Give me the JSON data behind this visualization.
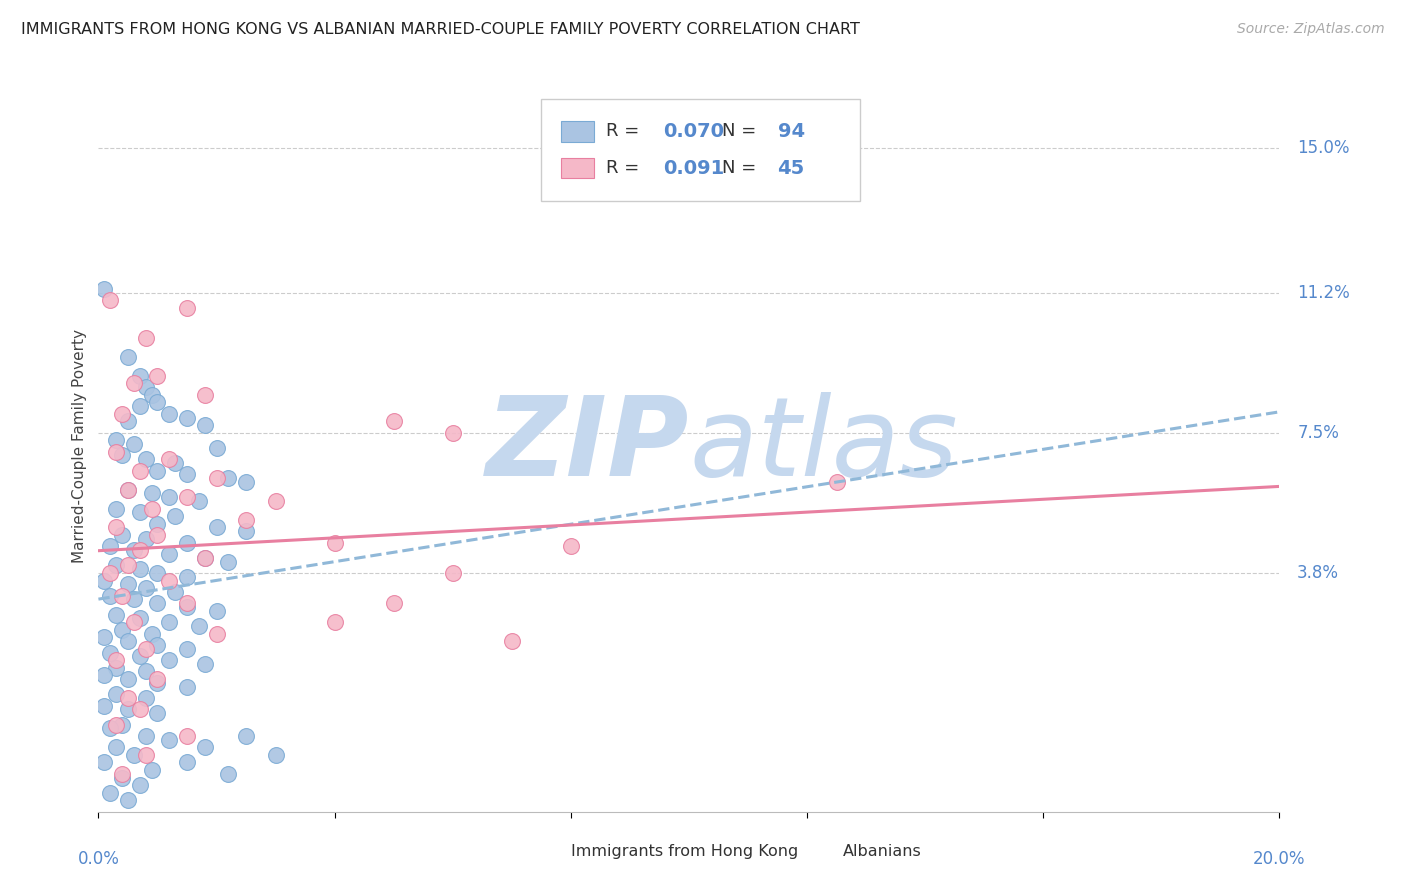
{
  "title": "IMMIGRANTS FROM HONG KONG VS ALBANIAN MARRIED-COUPLE FAMILY POVERTY CORRELATION CHART",
  "source": "Source: ZipAtlas.com",
  "ylabel": "Married-Couple Family Poverty",
  "y_ticks": [
    0.038,
    0.075,
    0.112,
    0.15
  ],
  "y_tick_labels": [
    "3.8%",
    "7.5%",
    "11.2%",
    "15.0%"
  ],
  "x_ticks": [
    0.0,
    0.04,
    0.08,
    0.12,
    0.16,
    0.2
  ],
  "x_range": [
    0.0,
    0.2
  ],
  "y_range": [
    -0.025,
    0.168
  ],
  "legend": {
    "hk_r": "0.070",
    "hk_n": "94",
    "alb_r": "0.091",
    "alb_n": "45"
  },
  "hk_color": "#aac4e2",
  "alb_color": "#f5b8c8",
  "hk_edge_color": "#7aaad4",
  "alb_edge_color": "#e87fa0",
  "hk_line_color": "#90b8d8",
  "alb_line_color": "#e87fa0",
  "title_color": "#222222",
  "axis_color": "#5588cc",
  "watermark_zip_color": "#c5d8ee",
  "watermark_atlas_color": "#c5d8ee",
  "background_color": "#ffffff",
  "grid_color": "#cccccc",
  "hk_scatter": [
    [
      0.001,
      0.113
    ],
    [
      0.005,
      0.095
    ],
    [
      0.007,
      0.09
    ],
    [
      0.008,
      0.087
    ],
    [
      0.009,
      0.085
    ],
    [
      0.01,
      0.083
    ],
    [
      0.007,
      0.082
    ],
    [
      0.012,
      0.08
    ],
    [
      0.015,
      0.079
    ],
    [
      0.005,
      0.078
    ],
    [
      0.018,
      0.077
    ],
    [
      0.003,
      0.073
    ],
    [
      0.006,
      0.072
    ],
    [
      0.02,
      0.071
    ],
    [
      0.004,
      0.069
    ],
    [
      0.008,
      0.068
    ],
    [
      0.013,
      0.067
    ],
    [
      0.01,
      0.065
    ],
    [
      0.015,
      0.064
    ],
    [
      0.022,
      0.063
    ],
    [
      0.025,
      0.062
    ],
    [
      0.005,
      0.06
    ],
    [
      0.009,
      0.059
    ],
    [
      0.012,
      0.058
    ],
    [
      0.017,
      0.057
    ],
    [
      0.003,
      0.055
    ],
    [
      0.007,
      0.054
    ],
    [
      0.013,
      0.053
    ],
    [
      0.01,
      0.051
    ],
    [
      0.02,
      0.05
    ],
    [
      0.025,
      0.049
    ],
    [
      0.004,
      0.048
    ],
    [
      0.008,
      0.047
    ],
    [
      0.015,
      0.046
    ],
    [
      0.002,
      0.045
    ],
    [
      0.006,
      0.044
    ],
    [
      0.012,
      0.043
    ],
    [
      0.018,
      0.042
    ],
    [
      0.022,
      0.041
    ],
    [
      0.003,
      0.04
    ],
    [
      0.007,
      0.039
    ],
    [
      0.01,
      0.038
    ],
    [
      0.015,
      0.037
    ],
    [
      0.001,
      0.036
    ],
    [
      0.005,
      0.035
    ],
    [
      0.008,
      0.034
    ],
    [
      0.013,
      0.033
    ],
    [
      0.002,
      0.032
    ],
    [
      0.006,
      0.031
    ],
    [
      0.01,
      0.03
    ],
    [
      0.015,
      0.029
    ],
    [
      0.02,
      0.028
    ],
    [
      0.003,
      0.027
    ],
    [
      0.007,
      0.026
    ],
    [
      0.012,
      0.025
    ],
    [
      0.017,
      0.024
    ],
    [
      0.004,
      0.023
    ],
    [
      0.009,
      0.022
    ],
    [
      0.001,
      0.021
    ],
    [
      0.005,
      0.02
    ],
    [
      0.01,
      0.019
    ],
    [
      0.015,
      0.018
    ],
    [
      0.002,
      0.017
    ],
    [
      0.007,
      0.016
    ],
    [
      0.012,
      0.015
    ],
    [
      0.018,
      0.014
    ],
    [
      0.003,
      0.013
    ],
    [
      0.008,
      0.012
    ],
    [
      0.001,
      0.011
    ],
    [
      0.005,
      0.01
    ],
    [
      0.01,
      0.009
    ],
    [
      0.015,
      0.008
    ],
    [
      0.003,
      0.006
    ],
    [
      0.008,
      0.005
    ],
    [
      0.001,
      0.003
    ],
    [
      0.005,
      0.002
    ],
    [
      0.01,
      0.001
    ],
    [
      0.004,
      -0.002
    ],
    [
      0.002,
      -0.003
    ],
    [
      0.008,
      -0.005
    ],
    [
      0.012,
      -0.006
    ],
    [
      0.003,
      -0.008
    ],
    [
      0.006,
      -0.01
    ],
    [
      0.001,
      -0.012
    ],
    [
      0.009,
      -0.014
    ],
    [
      0.004,
      -0.016
    ],
    [
      0.007,
      -0.018
    ],
    [
      0.002,
      -0.02
    ],
    [
      0.005,
      -0.022
    ],
    [
      0.015,
      -0.012
    ],
    [
      0.018,
      -0.008
    ],
    [
      0.022,
      -0.015
    ],
    [
      0.025,
      -0.005
    ],
    [
      0.03,
      -0.01
    ]
  ],
  "alb_scatter": [
    [
      0.002,
      0.11
    ],
    [
      0.015,
      0.108
    ],
    [
      0.008,
      0.1
    ],
    [
      0.01,
      0.09
    ],
    [
      0.006,
      0.088
    ],
    [
      0.018,
      0.085
    ],
    [
      0.004,
      0.08
    ],
    [
      0.05,
      0.078
    ],
    [
      0.06,
      0.075
    ],
    [
      0.003,
      0.07
    ],
    [
      0.012,
      0.068
    ],
    [
      0.007,
      0.065
    ],
    [
      0.02,
      0.063
    ],
    [
      0.005,
      0.06
    ],
    [
      0.015,
      0.058
    ],
    [
      0.03,
      0.057
    ],
    [
      0.009,
      0.055
    ],
    [
      0.025,
      0.052
    ],
    [
      0.003,
      0.05
    ],
    [
      0.01,
      0.048
    ],
    [
      0.04,
      0.046
    ],
    [
      0.007,
      0.044
    ],
    [
      0.018,
      0.042
    ],
    [
      0.005,
      0.04
    ],
    [
      0.125,
      0.062
    ],
    [
      0.002,
      0.038
    ],
    [
      0.012,
      0.036
    ],
    [
      0.06,
      0.038
    ],
    [
      0.004,
      0.032
    ],
    [
      0.015,
      0.03
    ],
    [
      0.08,
      0.045
    ],
    [
      0.006,
      0.025
    ],
    [
      0.02,
      0.022
    ],
    [
      0.008,
      0.018
    ],
    [
      0.003,
      0.015
    ],
    [
      0.05,
      0.03
    ],
    [
      0.01,
      0.01
    ],
    [
      0.005,
      0.005
    ],
    [
      0.04,
      0.025
    ],
    [
      0.007,
      0.002
    ],
    [
      0.003,
      -0.002
    ],
    [
      0.015,
      -0.005
    ],
    [
      0.008,
      -0.01
    ],
    [
      0.07,
      0.02
    ],
    [
      0.004,
      -0.015
    ]
  ]
}
